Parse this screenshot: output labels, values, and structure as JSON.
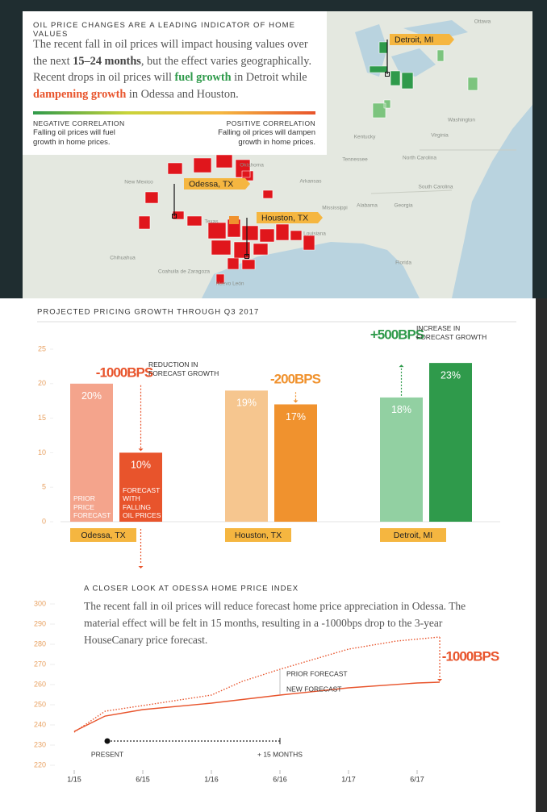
{
  "header": {
    "title": "OIL PRICE CHANGES ARE A LEADING INDICATOR OF HOME VALUES",
    "intro": [
      "The recent fall in oil prices will impact housing values over the next ",
      "15–24 months",
      ", but the effect varies geographically. Recent drops in oil prices will ",
      "fuel growth",
      " in Detroit while ",
      "dampening growth",
      " in Odessa and Houston."
    ],
    "legend": {
      "negative_title": "NEGATIVE CORRELATION",
      "negative_text": "Falling oil prices will fuel growth in home prices.",
      "positive_title": "POSITIVE CORRELATION",
      "positive_text": "Falling oil prices will dampen growth in home prices."
    }
  },
  "map": {
    "cities": [
      "Detroit, MI",
      "Odessa, TX",
      "Houston, TX"
    ],
    "labels": [
      "Ottawa",
      "Washington",
      "Virginia",
      "North Carolina",
      "South Carolina",
      "Tennessee",
      "Georgia",
      "Alabama",
      "Mississippi",
      "Louisiana",
      "Arkansas",
      "Oklahoma",
      "Texas",
      "New Mexico",
      "Chihuahua",
      "Coahuila de Zaragoza",
      "Nuevo León",
      "Florida",
      "Kentucky",
      "Missouri"
    ]
  },
  "chart_data": [
    {
      "type": "bar",
      "title": "PROJECTED PRICING GROWTH THROUGH Q3 2017",
      "categories": [
        "Odessa, TX",
        "Houston, TX",
        "Detroit, MI"
      ],
      "series": [
        {
          "name": "PRIOR PRICE FORECAST",
          "colors": [
            "#f4a48c",
            "#f6c68f",
            "#92d0a2"
          ],
          "values": [
            20,
            19,
            18
          ],
          "value_labels": [
            "20%",
            "19%",
            "18%"
          ]
        },
        {
          "name": "NEW FORECAST WITH FALLING OIL PRICES",
          "colors": [
            "#e8542c",
            "#f0922e",
            "#2f9a4b"
          ],
          "values": [
            10,
            17,
            23
          ],
          "value_labels": [
            "10%",
            "17%",
            "23%"
          ]
        }
      ],
      "ylim": [
        0,
        25
      ],
      "yticks": [
        0,
        5,
        10,
        15,
        20,
        25
      ],
      "annotations": [
        {
          "text": "-1000BPS",
          "note": "REDUCTION IN FORECAST GROWTH"
        },
        {
          "text": "-200BPS"
        },
        {
          "text": "+500BPS",
          "note": "INCREASE IN FORECAST GROWTH"
        }
      ]
    },
    {
      "type": "line",
      "title": "A CLOSER LOOK AT ODESSA HOME PRICE INDEX",
      "text": "The recent fall in oil prices will reduce forecast home price appreciation in Odessa. The material effect will be felt in 15 months, resulting in a -1000bps drop to the 3-year HouseCanary price forecast.",
      "series": [
        {
          "name": "PRIOR FORECAST",
          "color": "#e8542c",
          "style": "dotted",
          "x": [
            0,
            0.45,
            1,
            2,
            2.45,
            3,
            4,
            4.7,
            5.33
          ],
          "values": [
            236.4,
            246.8,
            249.6,
            254.8,
            261.6,
            267.6,
            277.6,
            281.6,
            283.6
          ]
        },
        {
          "name": "NEW FORECAST",
          "color": "#e8542c",
          "style": "solid",
          "x": [
            0,
            0.45,
            1,
            2,
            3,
            4,
            5,
            5.33
          ],
          "values": [
            236.8,
            244.4,
            247.6,
            250.8,
            254.8,
            258.4,
            260.8,
            261.2
          ]
        }
      ],
      "xlim": [
        -0.2,
        5.5
      ],
      "xticks": [
        {
          "value": 0,
          "label": "1/15"
        },
        {
          "value": 1,
          "label": "6/15"
        },
        {
          "value": 2,
          "label": "1/16"
        },
        {
          "value": 3,
          "label": "6/16"
        },
        {
          "value": 4,
          "label": "1/17"
        },
        {
          "value": 5,
          "label": "6/17"
        }
      ],
      "ylim": [
        220,
        300
      ],
      "yticks": [
        220,
        230,
        240,
        250,
        260,
        270,
        280,
        290,
        300
      ],
      "annotations": {
        "present": "PRESENT",
        "later": "+ 15 MONTHS",
        "change": "-1000BPS"
      }
    }
  ]
}
